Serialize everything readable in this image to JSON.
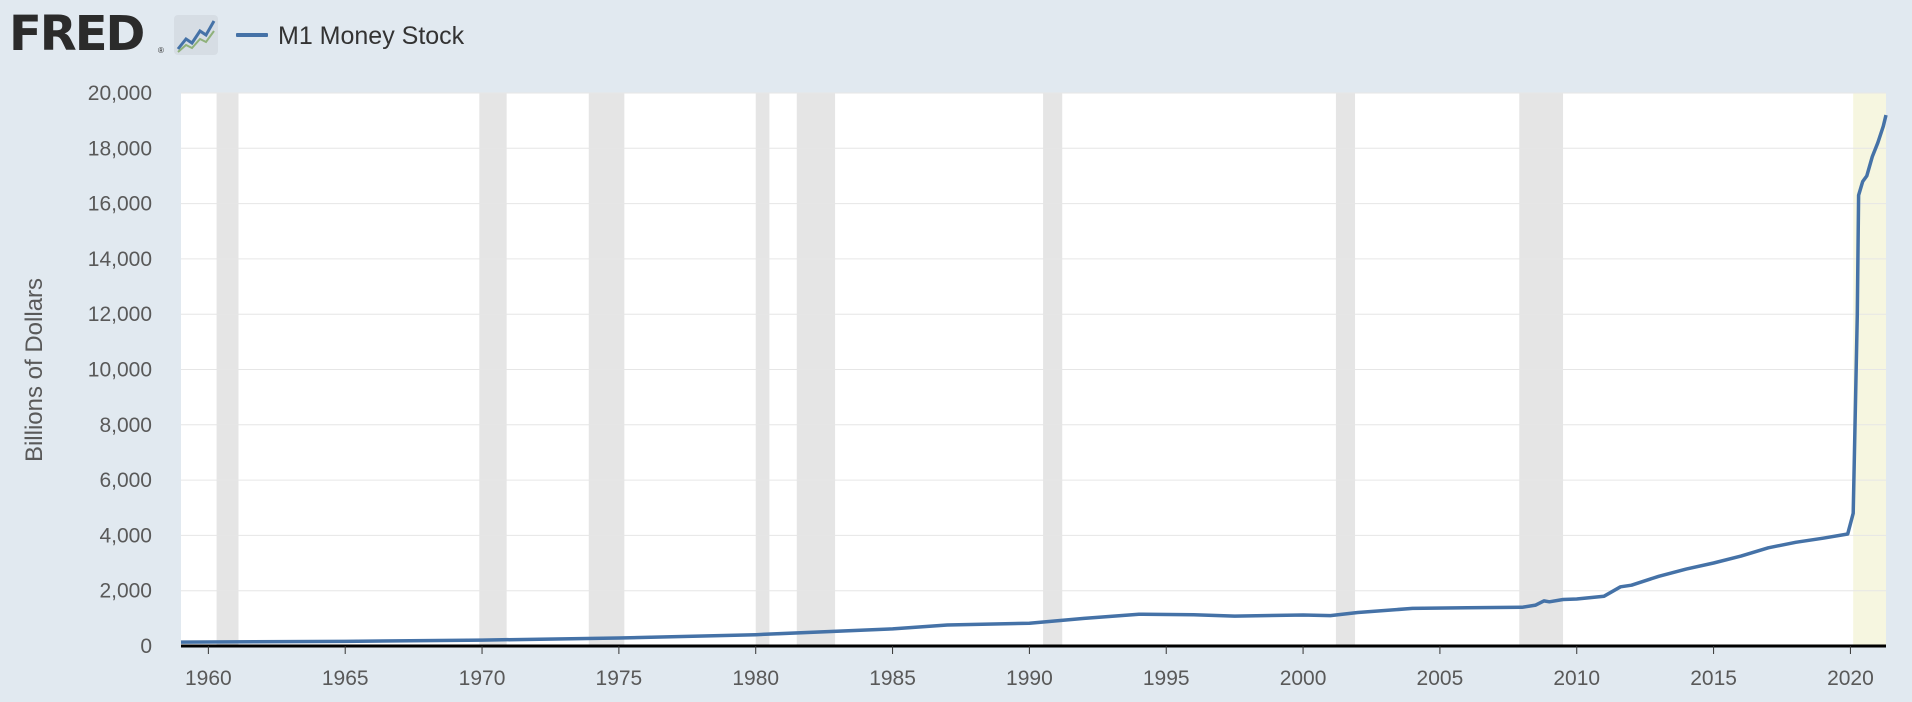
{
  "brand": {
    "logo_text": "FRED",
    "reg_mark": "®",
    "icon": "line-chart-icon"
  },
  "legend": {
    "label": "M1 Money Stock"
  },
  "colors": {
    "background": "#e1e9f0",
    "plot_bg": "#ffffff",
    "series": "#4572a7",
    "recession": "#e5e5e5",
    "highlight": "#f6f6e0",
    "grid": "#e6e6e6",
    "axis": "#000000"
  },
  "chart_data": {
    "type": "line",
    "ylabel": "Billions of Dollars",
    "xlim": [
      1959.0,
      2021.3
    ],
    "ylim": [
      0,
      20000
    ],
    "x_ticks": [
      "1960",
      "1965",
      "1970",
      "1975",
      "1980",
      "1985",
      "1990",
      "1995",
      "2000",
      "2005",
      "2010",
      "2015",
      "2020"
    ],
    "y_ticks": [
      "0",
      "2,000",
      "4,000",
      "6,000",
      "8,000",
      "10,000",
      "12,000",
      "14,000",
      "16,000",
      "18,000",
      "20,000"
    ],
    "grid": true,
    "legend_position": "top-left",
    "recessions": [
      [
        1960.3,
        1961.1
      ],
      [
        1969.9,
        1970.9
      ],
      [
        1973.9,
        1975.2
      ],
      [
        1980.0,
        1980.5
      ],
      [
        1981.5,
        1982.9
      ],
      [
        1990.5,
        1991.2
      ],
      [
        2001.2,
        2001.9
      ],
      [
        2007.9,
        2009.5
      ]
    ],
    "highlight_band": [
      2020.1,
      2021.3
    ],
    "series": [
      {
        "name": "M1 Money Stock",
        "x": [
          1959.0,
          1965.0,
          1970.0,
          1975.0,
          1980.0,
          1985.0,
          1987.0,
          1990.0,
          1992.0,
          1994.0,
          1996.0,
          1997.5,
          2000.0,
          2001.0,
          2002.0,
          2004.0,
          2006.0,
          2008.0,
          2008.5,
          2008.8,
          2009.0,
          2009.5,
          2010.0,
          2011.0,
          2011.6,
          2012.0,
          2013.0,
          2014.0,
          2015.0,
          2016.0,
          2017.0,
          2018.0,
          2019.0,
          2019.9,
          2020.1,
          2020.25,
          2020.3,
          2020.45,
          2020.6,
          2020.8,
          2021.0,
          2021.2,
          2021.3
        ],
        "values": [
          140,
          165,
          215,
          290,
          410,
          620,
          760,
          825,
          1000,
          1150,
          1130,
          1080,
          1120,
          1100,
          1210,
          1360,
          1385,
          1400,
          1480,
          1630,
          1600,
          1680,
          1700,
          1800,
          2140,
          2200,
          2520,
          2780,
          3000,
          3250,
          3550,
          3750,
          3900,
          4050,
          4800,
          12000,
          16300,
          16800,
          17000,
          17700,
          18200,
          18800,
          19200
        ]
      }
    ]
  }
}
